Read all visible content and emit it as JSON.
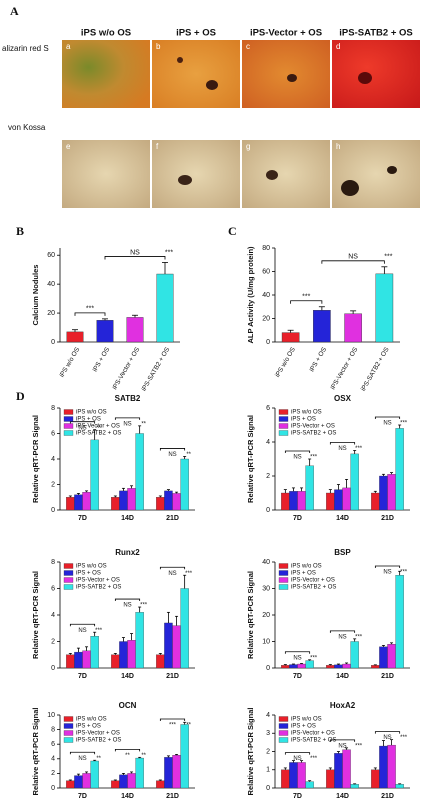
{
  "panel_a": {
    "label": "A",
    "columns": [
      "iPS w/o OS",
      "iPS + OS",
      "iPS-Vector + OS",
      "iPS-SATB2 + OS"
    ],
    "rows": [
      "alizarin red S",
      "von Kossa"
    ],
    "tiles": [
      "a",
      "b",
      "c",
      "d",
      "e",
      "f",
      "g",
      "h"
    ]
  },
  "panel_labels": [
    "B",
    "C",
    "D"
  ],
  "chart_data": [
    {
      "type": "bar",
      "ylabel": "Calcium Nodules",
      "categories": [
        "iPS w/o OS",
        "iPS + OS",
        "iPS-Vector + OS",
        "iPS-SATB2 + OS"
      ],
      "values": [
        7,
        15,
        17,
        47
      ],
      "errors": [
        1.5,
        1,
        1.5,
        8
      ],
      "colors": [
        "#e8202a",
        "#2424d8",
        "#e030e0",
        "#30e4e4"
      ],
      "ylim": [
        0,
        65
      ],
      "yticks": [
        0,
        20,
        40,
        60
      ],
      "annotations": [
        "***",
        "NS",
        "***"
      ]
    },
    {
      "type": "bar",
      "ylabel": "ALP Activity (U/mg protein)",
      "categories": [
        "iPS w/o OS",
        "iPS + OS",
        "iPS-Vector + OS",
        "iPS-SATB2 + OS"
      ],
      "values": [
        8,
        27,
        24,
        58
      ],
      "errors": [
        2,
        3,
        2.5,
        6
      ],
      "colors": [
        "#e8202a",
        "#2424d8",
        "#e030e0",
        "#30e4e4"
      ],
      "ylim": [
        0,
        80
      ],
      "yticks": [
        0,
        20,
        40,
        60,
        80
      ],
      "annotations": [
        "***",
        "NS",
        "***"
      ]
    },
    {
      "type": "grouped_bar",
      "title": "SATB2",
      "ylabel": "Relative qRT-PCR Signal",
      "categories": [
        "7D",
        "14D",
        "21D"
      ],
      "ylim": [
        0,
        8
      ],
      "yticks": [
        0,
        2,
        4,
        6,
        8
      ],
      "series": [
        {
          "name": "iPS w/o OS",
          "color": "#e8202a",
          "values": [
            1,
            1,
            1
          ],
          "errors": [
            0.1,
            0.1,
            0.1
          ]
        },
        {
          "name": "iPS + OS",
          "color": "#2424d8",
          "values": [
            1.2,
            1.5,
            1.5
          ],
          "errors": [
            0.1,
            0.2,
            0.1
          ]
        },
        {
          "name": "iPS-Vector + OS",
          "color": "#e030e0",
          "values": [
            1.4,
            1.7,
            1.3
          ],
          "errors": [
            0.1,
            0.2,
            0.1
          ]
        },
        {
          "name": "iPS-SATB2 + OS",
          "color": "#30e4e4",
          "values": [
            5.5,
            6,
            4
          ],
          "errors": [
            0.8,
            0.6,
            0.2
          ]
        }
      ],
      "annotations": [
        [
          "NS",
          "**"
        ],
        [
          "NS",
          "**"
        ],
        [
          "NS",
          "**"
        ]
      ]
    },
    {
      "type": "grouped_bar",
      "title": "OSX",
      "ylabel": "Relative qRT-PCR Signal",
      "categories": [
        "7D",
        "14D",
        "21D"
      ],
      "ylim": [
        0,
        6
      ],
      "yticks": [
        0,
        2,
        4,
        6
      ],
      "series": [
        {
          "name": "iPS w/o OS",
          "color": "#e8202a",
          "values": [
            1,
            1,
            1
          ],
          "errors": [
            0.2,
            0.2,
            0.1
          ]
        },
        {
          "name": "iPS + OS",
          "color": "#2424d8",
          "values": [
            1.1,
            1.2,
            2
          ],
          "errors": [
            0.2,
            0.3,
            0.1
          ]
        },
        {
          "name": "iPS-Vector + OS",
          "color": "#e030e0",
          "values": [
            1.1,
            1.3,
            2.1
          ],
          "errors": [
            0.2,
            0.5,
            0.1
          ]
        },
        {
          "name": "iPS-SATB2 + OS",
          "color": "#30e4e4",
          "values": [
            2.6,
            3.3,
            4.8
          ],
          "errors": [
            0.4,
            0.2,
            0.2
          ]
        }
      ],
      "annotations": [
        [
          "NS",
          "***"
        ],
        [
          "NS",
          "***"
        ],
        [
          "NS",
          "***"
        ]
      ]
    },
    {
      "type": "grouped_bar",
      "title": "Runx2",
      "ylabel": "Relative qRT-PCR Signal",
      "categories": [
        "7D",
        "14D",
        "21D"
      ],
      "ylim": [
        0,
        8
      ],
      "yticks": [
        0,
        2,
        4,
        6,
        8
      ],
      "series": [
        {
          "name": "iPS w/o OS",
          "color": "#e8202a",
          "values": [
            1,
            1,
            1
          ],
          "errors": [
            0.1,
            0.1,
            0.1
          ]
        },
        {
          "name": "iPS + OS",
          "color": "#2424d8",
          "values": [
            1.2,
            2,
            3.4
          ],
          "errors": [
            0.3,
            0.3,
            0.8
          ]
        },
        {
          "name": "iPS-Vector + OS",
          "color": "#e030e0",
          "values": [
            1.3,
            2.1,
            3.2
          ],
          "errors": [
            0.3,
            0.5,
            0.7
          ]
        },
        {
          "name": "iPS-SATB2 + OS",
          "color": "#30e4e4",
          "values": [
            2.4,
            4.2,
            6
          ],
          "errors": [
            0.3,
            0.4,
            1
          ]
        }
      ],
      "annotations": [
        [
          "NS",
          "***"
        ],
        [
          "NS",
          "***"
        ],
        [
          "NS",
          "***"
        ]
      ]
    },
    {
      "type": "grouped_bar",
      "title": "BSP",
      "ylabel": "Relative qRT-PCR Signal",
      "categories": [
        "7D",
        "14D",
        "21D"
      ],
      "ylim": [
        0,
        40
      ],
      "yticks": [
        0,
        10,
        20,
        30,
        40
      ],
      "series": [
        {
          "name": "iPS w/o OS",
          "color": "#e8202a",
          "values": [
            1,
            1,
            1
          ],
          "errors": [
            0.3,
            0.3,
            0.2
          ]
        },
        {
          "name": "iPS + OS",
          "color": "#2424d8",
          "values": [
            1.3,
            1.2,
            8
          ],
          "errors": [
            0.2,
            0.3,
            0.5
          ]
        },
        {
          "name": "iPS-Vector + OS",
          "color": "#e030e0",
          "values": [
            1.5,
            1.5,
            9
          ],
          "errors": [
            0.2,
            0.4,
            0.5
          ]
        },
        {
          "name": "iPS-SATB2 + OS",
          "color": "#30e4e4",
          "values": [
            2.8,
            10,
            35
          ],
          "errors": [
            0.3,
            1,
            1.5
          ]
        }
      ],
      "annotations": [
        [
          "NS",
          "***"
        ],
        [
          "NS",
          "***"
        ],
        [
          "NS",
          "***"
        ]
      ]
    },
    {
      "type": "grouped_bar",
      "title": "OCN",
      "ylabel": "Relative qRT-PCR Signal",
      "categories": [
        "7D",
        "14D",
        "21D"
      ],
      "ylim": [
        0,
        10
      ],
      "yticks": [
        0,
        2,
        4,
        6,
        8,
        10
      ],
      "series": [
        {
          "name": "iPS w/o OS",
          "color": "#e8202a",
          "values": [
            1,
            1,
            1
          ],
          "errors": [
            0.1,
            0.1,
            0.1
          ]
        },
        {
          "name": "iPS + OS",
          "color": "#2424d8",
          "values": [
            1.7,
            1.8,
            4.2
          ],
          "errors": [
            0.2,
            0.2,
            0.2
          ]
        },
        {
          "name": "iPS-Vector + OS",
          "color": "#e030e0",
          "values": [
            2,
            2,
            4.5
          ],
          "errors": [
            0.2,
            0.2,
            0.1
          ]
        },
        {
          "name": "iPS-SATB2 + OS",
          "color": "#30e4e4",
          "values": [
            3.7,
            4.1,
            8.7
          ],
          "errors": [
            0.1,
            0.1,
            0.3
          ]
        }
      ],
      "annotations": [
        [
          "NS",
          "**"
        ],
        [
          "**",
          "**"
        ],
        [
          "***",
          "**"
        ]
      ]
    },
    {
      "type": "grouped_bar",
      "title": "HoxA2",
      "ylabel": "Relative qRT-PCR Signal",
      "categories": [
        "7D",
        "14D",
        "21D"
      ],
      "ylim": [
        0,
        4
      ],
      "yticks": [
        0,
        1,
        2,
        3,
        4
      ],
      "series": [
        {
          "name": "iPS w/o OS",
          "color": "#e8202a",
          "values": [
            1,
            1,
            1
          ],
          "errors": [
            0.1,
            0.1,
            0.1
          ]
        },
        {
          "name": "iPS + OS",
          "color": "#2424d8",
          "values": [
            1.4,
            1.9,
            2.3
          ],
          "errors": [
            0.1,
            0.1,
            0.3
          ]
        },
        {
          "name": "iPS-Vector + OS",
          "color": "#e030e0",
          "values": [
            1.4,
            2.1,
            2.35
          ],
          "errors": [
            0.1,
            0.1,
            0.3
          ]
        },
        {
          "name": "iPS-SATB2 + OS",
          "color": "#30e4e4",
          "values": [
            0.35,
            0.2,
            0.2
          ],
          "errors": [
            0.05,
            0.03,
            0.03
          ]
        }
      ],
      "annotations": [
        [
          "NS",
          "***"
        ],
        [
          "NS",
          "***"
        ],
        [
          "NS",
          "***"
        ]
      ]
    }
  ]
}
